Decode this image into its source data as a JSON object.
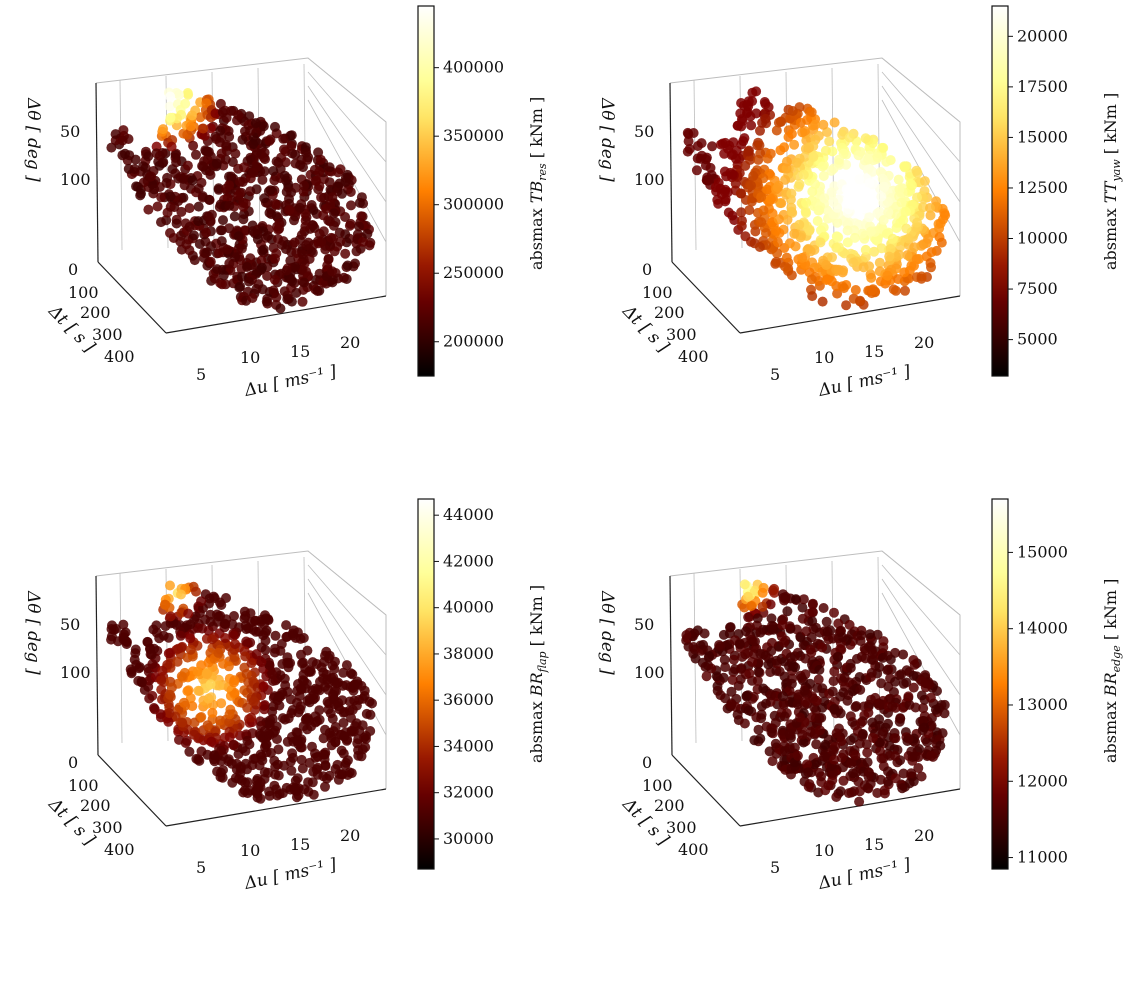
{
  "chart_data": [
    {
      "type": "scatter3d",
      "axes": {
        "x": {
          "label": "Δu [ ms⁻¹ ]",
          "ticks": [
            "5",
            "10",
            "15",
            "20"
          ]
        },
        "y": {
          "label": "Δt [ s ]",
          "ticks": [
            "0",
            "100",
            "200",
            "300",
            "400"
          ]
        },
        "z": {
          "label": "Δθ [ deg ]",
          "ticks": [
            "50",
            "100"
          ]
        }
      },
      "colorbar": {
        "label_prefix": "absmax",
        "quantity": "TB",
        "subscript": "res",
        "unit": "[ kNm ]",
        "ticks": [
          "200000",
          "250000",
          "300000",
          "350000",
          "400000"
        ],
        "range": [
          175000,
          445000
        ],
        "colormap": "afmhot"
      },
      "hotspot": "corner"
    },
    {
      "type": "scatter3d",
      "axes": {
        "x": {
          "label": "Δu [ ms⁻¹ ]",
          "ticks": [
            "5",
            "10",
            "15",
            "20"
          ]
        },
        "y": {
          "label": "Δt [ s ]",
          "ticks": [
            "0",
            "100",
            "200",
            "300",
            "400"
          ]
        },
        "z": {
          "label": "Δθ [ deg ]",
          "ticks": [
            "50",
            "100"
          ]
        }
      },
      "colorbar": {
        "label_prefix": "absmax",
        "quantity": "TT",
        "subscript": "yaw",
        "unit": "[ kNm ]",
        "ticks": [
          "5000",
          "7500",
          "10000",
          "12500",
          "15000",
          "17500",
          "20000"
        ],
        "range": [
          3200,
          21500
        ],
        "colormap": "afmhot"
      },
      "hotspot": "broad"
    },
    {
      "type": "scatter3d",
      "axes": {
        "x": {
          "label": "Δu [ ms⁻¹ ]",
          "ticks": [
            "5",
            "10",
            "15",
            "20"
          ]
        },
        "y": {
          "label": "Δt [ s ]",
          "ticks": [
            "0",
            "100",
            "200",
            "300",
            "400"
          ]
        },
        "z": {
          "label": "Δθ [ deg ]",
          "ticks": [
            "50",
            "100"
          ]
        }
      },
      "colorbar": {
        "label_prefix": "absmax",
        "quantity": "BR",
        "subscript": "flap",
        "unit": "[ kNm ]",
        "ticks": [
          "30000",
          "32000",
          "34000",
          "36000",
          "38000",
          "40000",
          "42000",
          "44000"
        ],
        "range": [
          28700,
          44700
        ],
        "colormap": "afmhot"
      },
      "hotspot": "inner"
    },
    {
      "type": "scatter3d",
      "axes": {
        "x": {
          "label": "Δu [ ms⁻¹ ]",
          "ticks": [
            "5",
            "10",
            "15",
            "20"
          ]
        },
        "y": {
          "label": "Δt [ s ]",
          "ticks": [
            "0",
            "100",
            "200",
            "300",
            "400"
          ]
        },
        "z": {
          "label": "Δθ [ deg ]",
          "ticks": [
            "50",
            "100"
          ]
        }
      },
      "colorbar": {
        "label_prefix": "absmax",
        "quantity": "BR",
        "subscript": "edge",
        "unit": "[ kNm ]",
        "ticks": [
          "11000",
          "12000",
          "13000",
          "14000",
          "15000"
        ],
        "range": [
          10850,
          15700
        ],
        "colormap": "afmhot"
      },
      "hotspot": "corner-small"
    }
  ]
}
